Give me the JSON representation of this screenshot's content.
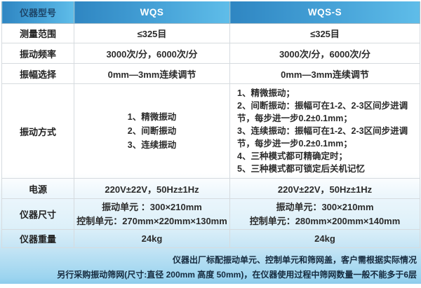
{
  "table": {
    "columns": {
      "label": "仪器型号",
      "wqs": "WQS",
      "wqss": "WQS-S"
    },
    "rows": {
      "measure_range": {
        "label": "测量范围",
        "wqs": "≤325目",
        "wqss": "≤325目"
      },
      "vib_freq": {
        "label": "振动频率",
        "wqs": "3000次/分，6000次/分",
        "wqss": "3000次/分，6000次/分"
      },
      "amplitude": {
        "label": "振幅选择",
        "wqs": "0mm—3mm连续调节",
        "wqss": "0mm—3mm连续调节"
      },
      "vib_mode": {
        "label": "振动方式",
        "wqs_lines": [
          "1、精微振动",
          "2、间断振动",
          "3、连续振动"
        ],
        "wqss_lines": [
          "1、精微振动；",
          "2、间断振动：振幅可在1-2、2-3区间步进调节，每步进一步0.2±0.1mm；",
          "3、连续振动：振幅可在1-2、2-3区间步进调节，每步进一步0.2±0.1mm；",
          "4、三种模式都可精确定时；",
          "5、三种模式都可锁定后关机记忆"
        ]
      },
      "power": {
        "label": "电源",
        "wqs": "220V±22V，50Hz±1Hz",
        "wqss": "220V±22V，50Hz±1Hz"
      },
      "size": {
        "label": "仪器尺寸",
        "wqs_lines": [
          "振动单元 ：300×210mm",
          "控制单元：270mm×220mm×130mm"
        ],
        "wqss_lines": [
          "振动单元：300×210mm",
          "控制单元：280mm×200mm×140mm"
        ]
      },
      "weight": {
        "label": "仪器重量",
        "wqs": "24kg",
        "wqss": "24kg"
      }
    }
  },
  "note": {
    "line1": "仪器出厂标配振动单元、控制单元和筛网盖，客户需根据实际情况",
    "line2": "另行采购振动筛网(尺寸:直径 200mm 高度 50mm)，在仪器使用过程中筛网数量一般不能多于6层"
  },
  "colors": {
    "header_gradient_left": "#2f86c2",
    "header_gradient_right": "#5fbde9",
    "header_label_text": "#1d4568",
    "header_model_text": "#ffffff",
    "page_bottom_blue": "#8ccbec",
    "cell_border": "#d6dbdf"
  }
}
